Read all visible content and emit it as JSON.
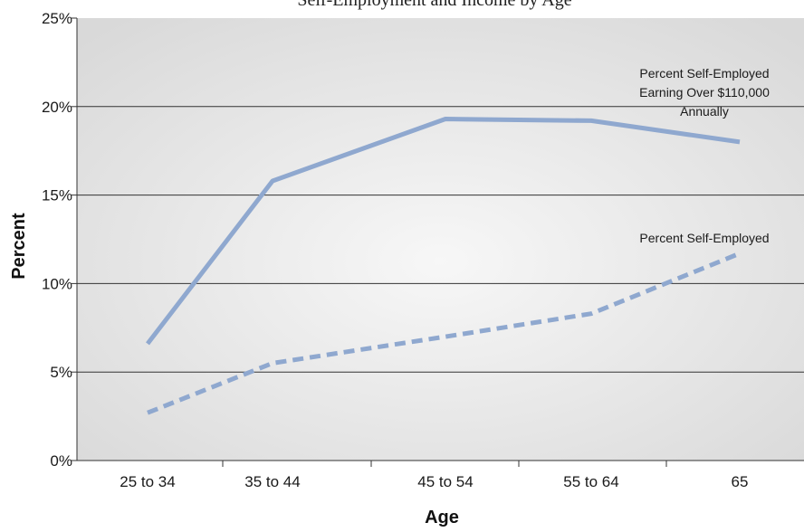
{
  "chart_data": {
    "type": "line",
    "title": "Self-Employment and Income by Age",
    "xlabel": "Age",
    "ylabel": "Percent",
    "categories": [
      "25 to 34",
      "35 to 44",
      "45 to 54",
      "55 to 64",
      "65"
    ],
    "yticks": [
      "0%",
      "5%",
      "10%",
      "15%",
      "20%",
      "25%"
    ],
    "ylim": [
      0,
      25
    ],
    "grid": true,
    "series": [
      {
        "name_lines": [
          "Percent Self-Employed",
          "Earning Over $110,000",
          "Annually"
        ],
        "values": [
          6.6,
          15.8,
          19.3,
          19.2,
          18.0
        ],
        "style": "solid",
        "color": "#8fa8cf"
      },
      {
        "name_lines": [
          "Percent Self-Employed"
        ],
        "values": [
          2.7,
          5.5,
          7.0,
          8.3,
          11.7
        ],
        "style": "dashed",
        "color": "#8fa8cf"
      }
    ],
    "colors": {
      "plot_background_edge": "#d9d9d9",
      "plot_background_center": "#f7f7f7",
      "gridline": "#333333"
    }
  }
}
